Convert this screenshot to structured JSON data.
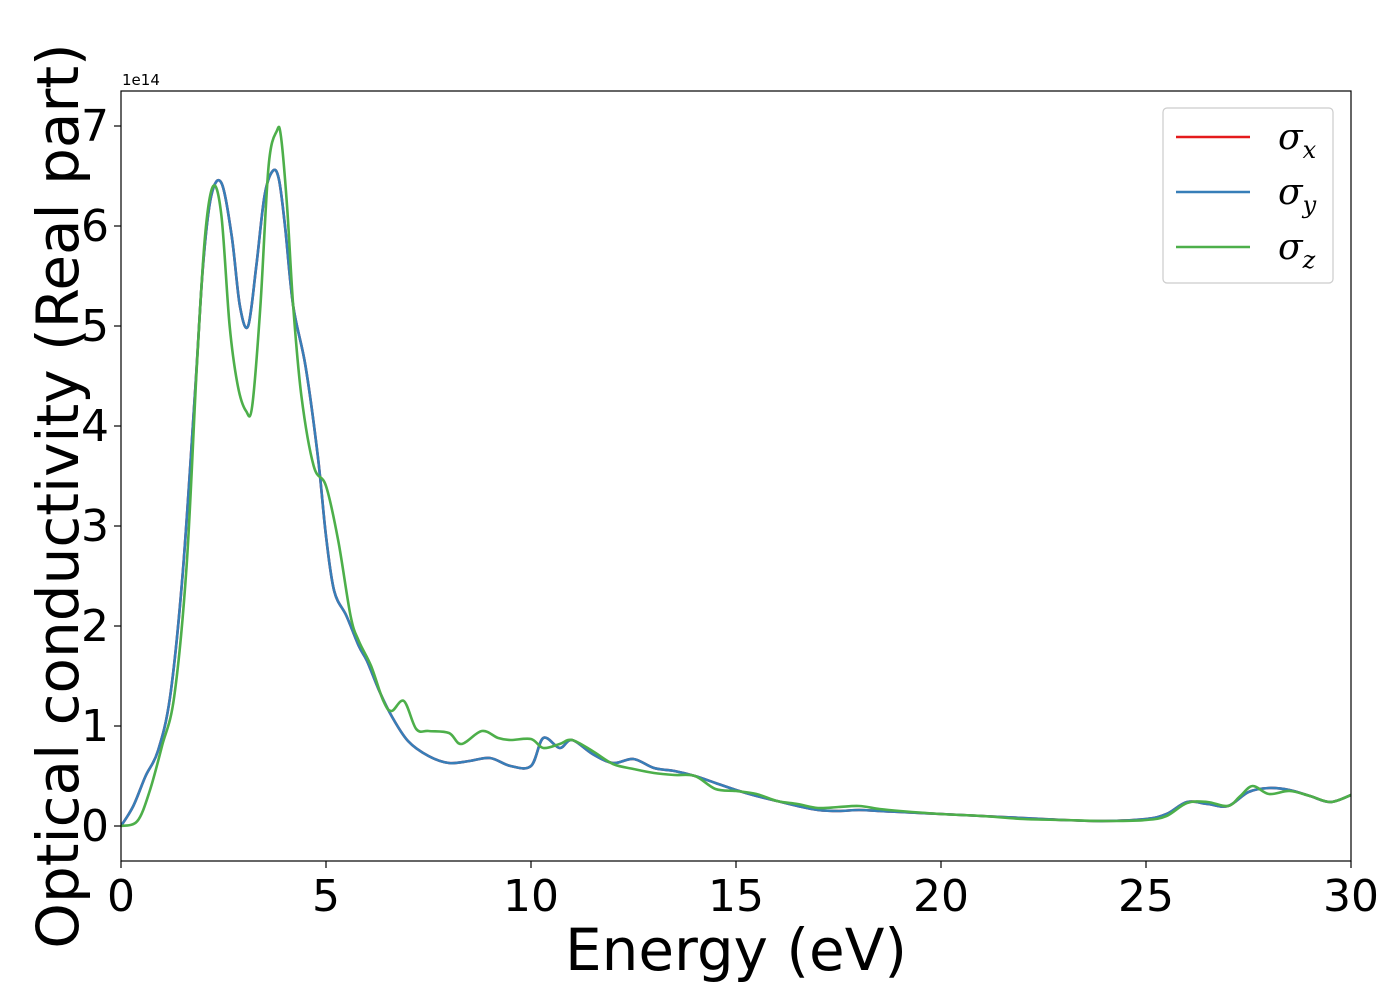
{
  "chart_data": {
    "type": "line",
    "xlabel": "Energy (eV)",
    "ylabel": "Optical conductivity (Real part)",
    "y_offset_label": "1e14",
    "xlim": [
      0,
      30
    ],
    "ylim": [
      -0.35,
      7.35
    ],
    "xticks": [
      0,
      5,
      10,
      15,
      20,
      25,
      30
    ],
    "xtick_labels": [
      "0",
      "5",
      "10",
      "15",
      "20",
      "25",
      "30"
    ],
    "yticks": [
      0,
      1,
      2,
      3,
      4,
      5,
      6,
      7
    ],
    "ytick_labels": [
      "0",
      "1",
      "2",
      "3",
      "4",
      "5",
      "6",
      "7"
    ],
    "grid": false,
    "legend_position": "top-right",
    "series": [
      {
        "name": "σx",
        "symbol": "σ",
        "subscript": "x",
        "color": "#e41a1c",
        "x": [
          0,
          0.3,
          0.6,
          0.9,
          1.2,
          1.5,
          1.8,
          2.0,
          2.2,
          2.45,
          2.7,
          2.9,
          3.1,
          3.3,
          3.5,
          3.7,
          3.85,
          4.0,
          4.2,
          4.5,
          4.8,
          5.0,
          5.2,
          5.5,
          5.8,
          6.0,
          6.3,
          6.6,
          7.0,
          7.5,
          8.0,
          8.5,
          9.0,
          9.5,
          10.0,
          10.3,
          10.7,
          11.0,
          11.5,
          12.0,
          12.5,
          13.0,
          13.5,
          14.0,
          14.5,
          15.0,
          15.5,
          16.0,
          16.5,
          17.0,
          17.5,
          18.0,
          18.5,
          19.0,
          20.0,
          21.0,
          22.0,
          23.0,
          24.0,
          25.0,
          25.5,
          26.0,
          26.5,
          27.0,
          27.5,
          28.0,
          28.5,
          29.0,
          29.5,
          30.0
        ],
        "y": [
          0.0,
          0.2,
          0.5,
          0.75,
          1.3,
          2.5,
          4.3,
          5.6,
          6.3,
          6.43,
          5.9,
          5.2,
          5.0,
          5.6,
          6.3,
          6.55,
          6.47,
          6.0,
          5.2,
          4.6,
          3.7,
          2.9,
          2.35,
          2.1,
          1.8,
          1.65,
          1.35,
          1.1,
          0.85,
          0.7,
          0.63,
          0.65,
          0.68,
          0.6,
          0.6,
          0.88,
          0.78,
          0.86,
          0.72,
          0.63,
          0.67,
          0.58,
          0.55,
          0.5,
          0.43,
          0.36,
          0.3,
          0.25,
          0.2,
          0.16,
          0.15,
          0.16,
          0.15,
          0.14,
          0.12,
          0.1,
          0.08,
          0.06,
          0.05,
          0.07,
          0.12,
          0.24,
          0.22,
          0.2,
          0.34,
          0.38,
          0.36,
          0.3,
          0.24,
          0.31
        ]
      },
      {
        "name": "σy",
        "symbol": "σ",
        "subscript": "y",
        "color": "#377eb8",
        "x": [
          0,
          0.3,
          0.6,
          0.9,
          1.2,
          1.5,
          1.8,
          2.0,
          2.2,
          2.45,
          2.7,
          2.9,
          3.1,
          3.3,
          3.5,
          3.7,
          3.85,
          4.0,
          4.2,
          4.5,
          4.8,
          5.0,
          5.2,
          5.5,
          5.8,
          6.0,
          6.3,
          6.6,
          7.0,
          7.5,
          8.0,
          8.5,
          9.0,
          9.5,
          10.0,
          10.3,
          10.7,
          11.0,
          11.5,
          12.0,
          12.5,
          13.0,
          13.5,
          14.0,
          14.5,
          15.0,
          15.5,
          16.0,
          16.5,
          17.0,
          17.5,
          18.0,
          18.5,
          19.0,
          20.0,
          21.0,
          22.0,
          23.0,
          24.0,
          25.0,
          25.5,
          26.0,
          26.5,
          27.0,
          27.5,
          28.0,
          28.5,
          29.0,
          29.5,
          30.0
        ],
        "y": [
          0.0,
          0.2,
          0.5,
          0.75,
          1.3,
          2.5,
          4.3,
          5.6,
          6.3,
          6.43,
          5.9,
          5.2,
          5.0,
          5.6,
          6.3,
          6.55,
          6.47,
          6.0,
          5.2,
          4.6,
          3.7,
          2.9,
          2.35,
          2.1,
          1.8,
          1.65,
          1.35,
          1.1,
          0.85,
          0.7,
          0.63,
          0.65,
          0.68,
          0.6,
          0.6,
          0.88,
          0.78,
          0.86,
          0.72,
          0.63,
          0.67,
          0.58,
          0.55,
          0.5,
          0.43,
          0.36,
          0.3,
          0.25,
          0.2,
          0.16,
          0.15,
          0.16,
          0.15,
          0.14,
          0.12,
          0.1,
          0.08,
          0.06,
          0.05,
          0.07,
          0.12,
          0.24,
          0.22,
          0.2,
          0.34,
          0.38,
          0.36,
          0.3,
          0.24,
          0.31
        ]
      },
      {
        "name": "σz",
        "symbol": "σ",
        "subscript": "z",
        "color": "#4daf4a",
        "x": [
          0,
          0.4,
          0.7,
          1.0,
          1.3,
          1.6,
          1.85,
          2.05,
          2.25,
          2.45,
          2.65,
          2.85,
          3.05,
          3.2,
          3.4,
          3.6,
          3.8,
          3.9,
          4.05,
          4.2,
          4.4,
          4.7,
          5.0,
          5.3,
          5.6,
          5.8,
          6.1,
          6.4,
          6.6,
          6.9,
          7.2,
          7.5,
          8.0,
          8.3,
          8.8,
          9.2,
          9.5,
          10.0,
          10.3,
          10.7,
          11.0,
          11.5,
          12.0,
          12.5,
          13.0,
          13.5,
          14.0,
          14.5,
          15.0,
          15.5,
          16.0,
          16.5,
          17.0,
          17.5,
          18.0,
          18.5,
          19.0,
          20.0,
          21.0,
          22.0,
          23.0,
          24.0,
          25.0,
          25.5,
          26.0,
          26.5,
          27.0,
          27.3,
          27.6,
          28.0,
          28.5,
          29.0,
          29.5,
          30.0
        ],
        "y": [
          0.0,
          0.05,
          0.35,
          0.8,
          1.3,
          2.6,
          4.6,
          5.9,
          6.4,
          6.1,
          5.0,
          4.4,
          4.15,
          4.2,
          5.2,
          6.6,
          6.95,
          6.9,
          6.2,
          5.2,
          4.3,
          3.6,
          3.4,
          2.85,
          2.1,
          1.85,
          1.6,
          1.25,
          1.15,
          1.25,
          0.97,
          0.95,
          0.93,
          0.82,
          0.95,
          0.88,
          0.86,
          0.87,
          0.78,
          0.82,
          0.86,
          0.75,
          0.62,
          0.57,
          0.53,
          0.51,
          0.5,
          0.37,
          0.35,
          0.32,
          0.25,
          0.22,
          0.18,
          0.19,
          0.2,
          0.17,
          0.15,
          0.12,
          0.1,
          0.07,
          0.06,
          0.05,
          0.06,
          0.1,
          0.23,
          0.24,
          0.2,
          0.3,
          0.4,
          0.32,
          0.35,
          0.3,
          0.24,
          0.31
        ]
      }
    ]
  }
}
